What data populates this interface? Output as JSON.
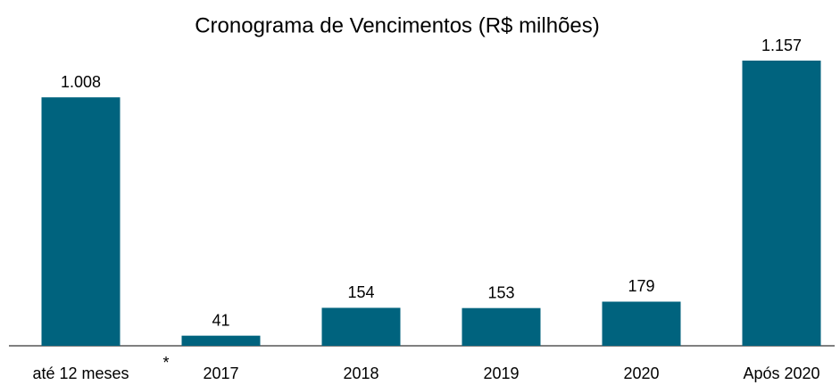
{
  "chart_data": {
    "type": "bar",
    "title": "Cronograma de Vencimentos (R$ milhões)",
    "categories": [
      "até 12 meses",
      "2017",
      "2018",
      "2019",
      "2020",
      "Após 2020"
    ],
    "values": [
      1008,
      41,
      154,
      153,
      179,
      1157
    ],
    "value_labels": [
      "1.008",
      "41",
      "154",
      "153",
      "179",
      "1.157"
    ],
    "annotations": [
      "*"
    ],
    "color": "#00637e"
  }
}
